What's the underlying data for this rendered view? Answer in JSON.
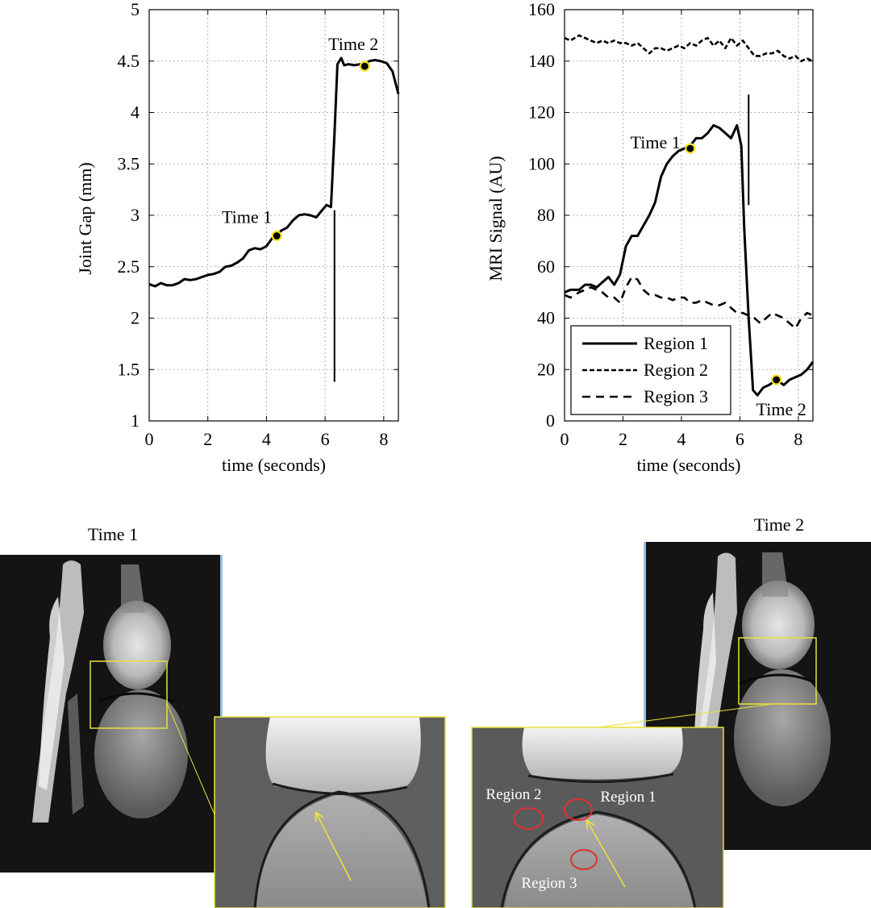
{
  "chart_data": [
    {
      "type": "line",
      "title": "",
      "xlabel": "time (seconds)",
      "ylabel": "Joint Gap (mm)",
      "xlim": [
        0,
        8.5
      ],
      "ylim": [
        1,
        5
      ],
      "xticks": [
        0,
        2,
        4,
        6,
        8
      ],
      "yticks": [
        1,
        1.5,
        2,
        2.5,
        3,
        3.5,
        4,
        4.5,
        5
      ],
      "grid": true,
      "series": [
        {
          "name": "",
          "style": "solid",
          "x": [
            0,
            0.2,
            0.4,
            0.6,
            0.8,
            1.0,
            1.2,
            1.4,
            1.6,
            1.8,
            2.0,
            2.2,
            2.4,
            2.6,
            2.8,
            3.0,
            3.2,
            3.4,
            3.6,
            3.8,
            4.0,
            4.2,
            4.35,
            4.5,
            4.7,
            4.9,
            5.1,
            5.3,
            5.5,
            5.7,
            5.9,
            6.05,
            6.2,
            6.32,
            6.42,
            6.55,
            6.65,
            6.8,
            7.0,
            7.2,
            7.35,
            7.5,
            7.7,
            7.9,
            8.1,
            8.3,
            8.5
          ],
          "y": [
            2.33,
            2.31,
            2.34,
            2.32,
            2.32,
            2.34,
            2.38,
            2.37,
            2.38,
            2.4,
            2.42,
            2.43,
            2.45,
            2.5,
            2.51,
            2.54,
            2.58,
            2.66,
            2.68,
            2.67,
            2.7,
            2.78,
            2.8,
            2.85,
            2.88,
            2.95,
            3.0,
            3.01,
            3.0,
            2.98,
            3.05,
            3.1,
            3.08,
            3.8,
            4.47,
            4.53,
            4.46,
            4.47,
            4.46,
            4.47,
            4.45,
            4.5,
            4.51,
            4.5,
            4.48,
            4.4,
            4.18
          ]
        }
      ],
      "vertical_line": {
        "x": 6.32,
        "y_from": 1.38,
        "y_to": 3.05
      },
      "annotations": [
        {
          "text": "Time 1",
          "x": 4.35,
          "y": 2.8
        },
        {
          "text": "Time 2",
          "x": 7.35,
          "y": 4.45
        }
      ]
    },
    {
      "type": "line",
      "title": "",
      "xlabel": "time (seconds)",
      "ylabel": "MRI Signal (AU)",
      "xlim": [
        0,
        8.5
      ],
      "ylim": [
        0,
        160
      ],
      "xticks": [
        0,
        2,
        4,
        6,
        8
      ],
      "yticks": [
        0,
        20,
        40,
        60,
        80,
        100,
        120,
        140,
        160
      ],
      "grid": true,
      "legend_placement": "bottom-left",
      "series": [
        {
          "name": "Region 1",
          "style": "solid",
          "x": [
            0,
            0.2,
            0.5,
            0.7,
            0.9,
            1.1,
            1.3,
            1.5,
            1.7,
            1.9,
            2.1,
            2.3,
            2.5,
            2.7,
            2.9,
            3.1,
            3.3,
            3.5,
            3.7,
            3.9,
            4.1,
            4.3,
            4.5,
            4.7,
            4.9,
            5.1,
            5.3,
            5.5,
            5.7,
            5.9,
            6.05,
            6.15,
            6.3,
            6.45,
            6.6,
            6.8,
            7.0,
            7.25,
            7.5,
            7.7,
            7.9,
            8.1,
            8.3,
            8.5
          ],
          "y": [
            50,
            51,
            51,
            53,
            53,
            52,
            54,
            56,
            53,
            57,
            68,
            72,
            72,
            76,
            80,
            85,
            95,
            100,
            103,
            105,
            106,
            107,
            110,
            110,
            112,
            115,
            114,
            112,
            110,
            115,
            107,
            75,
            40,
            12,
            10,
            13,
            14,
            16,
            14,
            16,
            17,
            18,
            20,
            23
          ]
        },
        {
          "name": "Region 2",
          "style": "dashed",
          "x": [
            0,
            0.2,
            0.5,
            0.7,
            0.9,
            1.1,
            1.3,
            1.5,
            1.7,
            1.9,
            2.1,
            2.3,
            2.5,
            2.7,
            2.9,
            3.1,
            3.3,
            3.5,
            3.7,
            3.9,
            4.1,
            4.3,
            4.5,
            4.7,
            4.9,
            5.1,
            5.3,
            5.5,
            5.7,
            5.9,
            6.1,
            6.3,
            6.5,
            6.7,
            6.9,
            7.1,
            7.3,
            7.5,
            7.7,
            7.9,
            8.1,
            8.3,
            8.5
          ],
          "y": [
            149,
            148,
            150,
            149,
            148,
            147,
            148,
            147,
            148,
            147,
            147,
            146,
            147,
            145,
            143,
            145,
            145,
            144,
            145,
            146,
            145,
            147,
            146,
            148,
            149,
            146,
            148,
            145,
            149,
            146,
            148,
            145,
            142,
            142,
            143,
            143,
            144,
            142,
            141,
            142,
            140,
            141,
            140
          ]
        },
        {
          "name": "Region 3",
          "style": "dashed-heavy",
          "x": [
            0,
            0.2,
            0.5,
            0.7,
            0.9,
            1.1,
            1.3,
            1.5,
            1.7,
            1.9,
            2.1,
            2.3,
            2.5,
            2.7,
            2.9,
            3.1,
            3.3,
            3.5,
            3.7,
            3.9,
            4.1,
            4.3,
            4.5,
            4.7,
            4.9,
            5.1,
            5.3,
            5.5,
            5.7,
            5.9,
            6.1,
            6.3,
            6.5,
            6.7,
            6.9,
            7.1,
            7.3,
            7.5,
            7.7,
            7.9,
            8.1,
            8.3,
            8.5
          ],
          "y": [
            49,
            48,
            50,
            51,
            52,
            51,
            50,
            48,
            48,
            46,
            52,
            56,
            55,
            51,
            49,
            49,
            48,
            48,
            47,
            48,
            48,
            46,
            46,
            47,
            46,
            45,
            45,
            46,
            44,
            42,
            42,
            41,
            40,
            38,
            40,
            42,
            41,
            40,
            38,
            36,
            40,
            42,
            41
          ]
        }
      ],
      "vertical_line": {
        "x": 6.3,
        "y_from": 84,
        "y_to": 127
      },
      "annotations": [
        {
          "text": "Time 1",
          "x": 4.3,
          "y": 106
        },
        {
          "text": "Time 2",
          "x": 7.25,
          "y": 16
        }
      ]
    }
  ],
  "images": {
    "left_label": "Time 1",
    "right_label": "Time 2",
    "region_labels": [
      "Region 2",
      "Region 1",
      "Region 3"
    ]
  },
  "colors": {
    "marker_fill": "#000000",
    "marker_ring": "#f5e020",
    "zoom_box": "#e8e23a",
    "arrow": "#e8e23a",
    "region_circle": "#e03030",
    "mri_background": "#141414"
  }
}
